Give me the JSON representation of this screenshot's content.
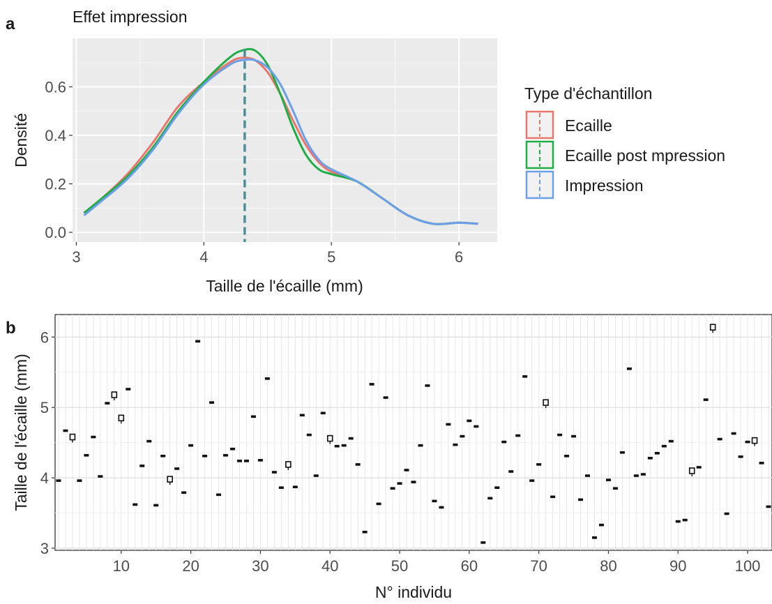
{
  "chart_data": [
    {
      "panel_label": "a",
      "type": "line",
      "title": "Effet impression",
      "xlabel": "Taille de l'écaille (mm)",
      "ylabel": "Densité",
      "xlim": [
        2.97,
        6.3
      ],
      "ylim": [
        -0.04,
        0.8
      ],
      "x_ticks": [
        "3",
        "4",
        "5",
        "6"
      ],
      "y_ticks": [
        "0.0",
        "0.2",
        "0.4",
        "0.6"
      ],
      "grid": true,
      "background": "#ebebeb",
      "legend": {
        "title": "Type d'échantillon",
        "placement": "right"
      },
      "vline": {
        "x": 4.32,
        "style": "dashed"
      },
      "series": [
        {
          "name": "Ecaille",
          "color": "#e8766d",
          "x": [
            3.06,
            3.2,
            3.4,
            3.6,
            3.8,
            4.0,
            4.2,
            4.3,
            4.4,
            4.5,
            4.6,
            4.7,
            4.8,
            4.9,
            5.0,
            5.2,
            5.4,
            5.6,
            5.8,
            6.0,
            6.15
          ],
          "y": [
            0.08,
            0.14,
            0.24,
            0.37,
            0.52,
            0.62,
            0.7,
            0.72,
            0.71,
            0.66,
            0.57,
            0.46,
            0.36,
            0.29,
            0.25,
            0.21,
            0.14,
            0.07,
            0.035,
            0.04,
            0.035
          ]
        },
        {
          "name": "Ecaille post mpression",
          "color": "#1fae46",
          "x": [
            3.06,
            3.2,
            3.4,
            3.6,
            3.8,
            4.0,
            4.2,
            4.3,
            4.4,
            4.5,
            4.6,
            4.7,
            4.8,
            4.9,
            5.0,
            5.2,
            5.4,
            5.6,
            5.8,
            6.0,
            6.15
          ],
          "y": [
            0.08,
            0.14,
            0.23,
            0.35,
            0.5,
            0.62,
            0.72,
            0.75,
            0.75,
            0.69,
            0.57,
            0.43,
            0.32,
            0.26,
            0.24,
            0.21,
            0.14,
            0.07,
            0.035,
            0.04,
            0.035
          ]
        },
        {
          "name": "Impression",
          "color": "#6b9fe8",
          "x": [
            3.06,
            3.2,
            3.4,
            3.6,
            3.8,
            4.0,
            4.2,
            4.3,
            4.4,
            4.5,
            4.6,
            4.7,
            4.8,
            4.9,
            5.0,
            5.2,
            5.4,
            5.6,
            5.8,
            6.0,
            6.15
          ],
          "y": [
            0.07,
            0.13,
            0.22,
            0.34,
            0.49,
            0.61,
            0.69,
            0.71,
            0.71,
            0.68,
            0.61,
            0.5,
            0.38,
            0.3,
            0.26,
            0.21,
            0.14,
            0.07,
            0.035,
            0.04,
            0.035
          ]
        }
      ]
    },
    {
      "panel_label": "b",
      "type": "scatter",
      "title": "",
      "xlabel": "N° individu",
      "ylabel": "Taille de l'écaille (mm)",
      "xlim": [
        0.5,
        103.5
      ],
      "ylim": [
        2.97,
        6.32
      ],
      "x_ticks": [
        "10",
        "20",
        "30",
        "40",
        "50",
        "60",
        "70",
        "80",
        "90",
        "100"
      ],
      "y_ticks": [
        "3",
        "4",
        "5",
        "6"
      ],
      "grid": true,
      "background": "#ffffff",
      "marker": "boxplot",
      "x": [
        1,
        2,
        3,
        4,
        5,
        6,
        7,
        8,
        9,
        10,
        11,
        12,
        13,
        14,
        15,
        16,
        17,
        18,
        19,
        20,
        21,
        22,
        23,
        24,
        25,
        26,
        27,
        28,
        29,
        30,
        31,
        32,
        33,
        34,
        35,
        36,
        37,
        38,
        39,
        40,
        41,
        42,
        43,
        44,
        45,
        46,
        47,
        48,
        49,
        50,
        51,
        52,
        53,
        54,
        55,
        56,
        57,
        58,
        59,
        60,
        61,
        62,
        63,
        64,
        65,
        66,
        67,
        68,
        69,
        70,
        71,
        72,
        73,
        74,
        75,
        76,
        77,
        78,
        79,
        80,
        81,
        82,
        83,
        84,
        85,
        86,
        87,
        88,
        89,
        90,
        91,
        92,
        93,
        94,
        95,
        96,
        97,
        98,
        99,
        100,
        101,
        102,
        103
      ],
      "y": [
        3.96,
        4.67,
        4.58,
        3.96,
        4.32,
        4.58,
        4.02,
        5.06,
        5.18,
        4.85,
        5.26,
        3.62,
        4.17,
        4.52,
        3.61,
        4.31,
        3.98,
        4.13,
        3.79,
        4.46,
        5.94,
        4.31,
        5.07,
        3.76,
        4.32,
        4.41,
        4.24,
        4.24,
        4.87,
        4.25,
        5.41,
        4.08,
        3.86,
        4.19,
        3.87,
        4.89,
        4.61,
        4.03,
        4.92,
        4.56,
        4.45,
        4.46,
        4.56,
        4.19,
        3.23,
        5.33,
        3.63,
        5.14,
        3.85,
        3.92,
        4.11,
        3.94,
        4.46,
        5.31,
        3.67,
        3.58,
        4.76,
        4.47,
        4.59,
        4.81,
        4.73,
        3.08,
        3.71,
        3.86,
        4.51,
        4.09,
        4.6,
        5.44,
        3.96,
        4.19,
        5.07,
        3.73,
        4.61,
        4.31,
        4.59,
        3.69,
        4.03,
        3.15,
        3.33,
        3.97,
        3.85,
        4.36,
        5.55,
        4.03,
        4.05,
        4.28,
        4.35,
        4.45,
        4.52,
        3.38,
        3.4,
        4.1,
        4.15,
        5.11,
        6.14,
        4.55,
        3.49,
        4.63,
        4.3,
        4.51,
        4.53,
        4.21,
        3.59
      ]
    }
  ]
}
